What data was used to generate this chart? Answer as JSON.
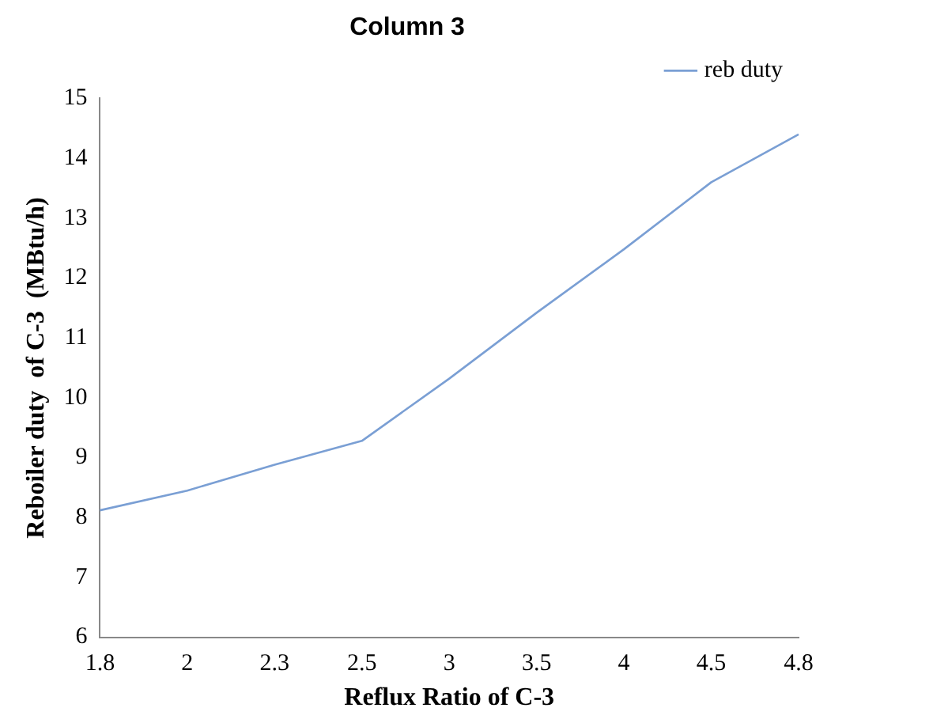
{
  "chart_data": {
    "type": "line",
    "title": "Column 3",
    "xlabel": "Reflux Ratio of C-3",
    "ylabel": "Reboiler duty  of C-3  (MBtu/h)",
    "categories": [
      "1.8",
      "2",
      "2.3",
      "2.5",
      "3",
      "3.5",
      "4",
      "4.5",
      "4.8"
    ],
    "series": [
      {
        "name": "reb duty",
        "color": "#7a9fd4",
        "values": [
          8.12,
          8.45,
          8.88,
          9.28,
          10.32,
          11.42,
          12.48,
          13.6,
          14.4
        ]
      }
    ],
    "ylim": [
      6,
      15
    ],
    "yticks": [
      6,
      7,
      8,
      9,
      10,
      11,
      12,
      13,
      14,
      15
    ],
    "grid": false,
    "legend": "top right",
    "marker": "none"
  }
}
